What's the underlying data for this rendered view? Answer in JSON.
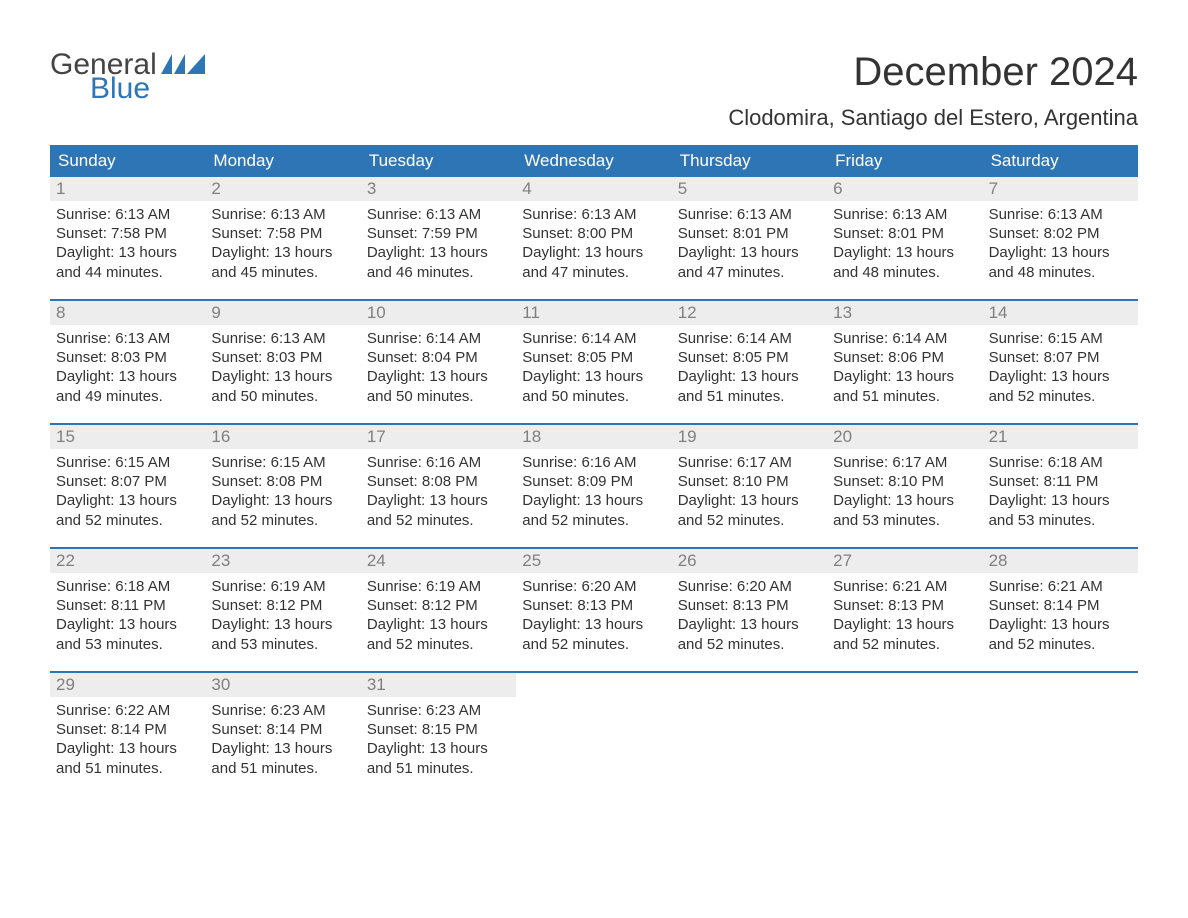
{
  "logo": {
    "line1": "General",
    "line2": "Blue",
    "color_general": "#444444",
    "color_blue": "#2e75b6"
  },
  "title": "December 2024",
  "location": "Clodomira, Santiago del Estero, Argentina",
  "header_bg": "#2e75b6",
  "header_text_color": "#ffffff",
  "daynum_bg": "#ededed",
  "daynum_color": "#808080",
  "body_text_color": "#333333",
  "week_border_color": "#2e75b6",
  "day_headers": [
    "Sunday",
    "Monday",
    "Tuesday",
    "Wednesday",
    "Thursday",
    "Friday",
    "Saturday"
  ],
  "weeks": [
    [
      {
        "n": "1",
        "sr": "Sunrise: 6:13 AM",
        "ss": "Sunset: 7:58 PM",
        "d1": "Daylight: 13 hours",
        "d2": "and 44 minutes."
      },
      {
        "n": "2",
        "sr": "Sunrise: 6:13 AM",
        "ss": "Sunset: 7:58 PM",
        "d1": "Daylight: 13 hours",
        "d2": "and 45 minutes."
      },
      {
        "n": "3",
        "sr": "Sunrise: 6:13 AM",
        "ss": "Sunset: 7:59 PM",
        "d1": "Daylight: 13 hours",
        "d2": "and 46 minutes."
      },
      {
        "n": "4",
        "sr": "Sunrise: 6:13 AM",
        "ss": "Sunset: 8:00 PM",
        "d1": "Daylight: 13 hours",
        "d2": "and 47 minutes."
      },
      {
        "n": "5",
        "sr": "Sunrise: 6:13 AM",
        "ss": "Sunset: 8:01 PM",
        "d1": "Daylight: 13 hours",
        "d2": "and 47 minutes."
      },
      {
        "n": "6",
        "sr": "Sunrise: 6:13 AM",
        "ss": "Sunset: 8:01 PM",
        "d1": "Daylight: 13 hours",
        "d2": "and 48 minutes."
      },
      {
        "n": "7",
        "sr": "Sunrise: 6:13 AM",
        "ss": "Sunset: 8:02 PM",
        "d1": "Daylight: 13 hours",
        "d2": "and 48 minutes."
      }
    ],
    [
      {
        "n": "8",
        "sr": "Sunrise: 6:13 AM",
        "ss": "Sunset: 8:03 PM",
        "d1": "Daylight: 13 hours",
        "d2": "and 49 minutes."
      },
      {
        "n": "9",
        "sr": "Sunrise: 6:13 AM",
        "ss": "Sunset: 8:03 PM",
        "d1": "Daylight: 13 hours",
        "d2": "and 50 minutes."
      },
      {
        "n": "10",
        "sr": "Sunrise: 6:14 AM",
        "ss": "Sunset: 8:04 PM",
        "d1": "Daylight: 13 hours",
        "d2": "and 50 minutes."
      },
      {
        "n": "11",
        "sr": "Sunrise: 6:14 AM",
        "ss": "Sunset: 8:05 PM",
        "d1": "Daylight: 13 hours",
        "d2": "and 50 minutes."
      },
      {
        "n": "12",
        "sr": "Sunrise: 6:14 AM",
        "ss": "Sunset: 8:05 PM",
        "d1": "Daylight: 13 hours",
        "d2": "and 51 minutes."
      },
      {
        "n": "13",
        "sr": "Sunrise: 6:14 AM",
        "ss": "Sunset: 8:06 PM",
        "d1": "Daylight: 13 hours",
        "d2": "and 51 minutes."
      },
      {
        "n": "14",
        "sr": "Sunrise: 6:15 AM",
        "ss": "Sunset: 8:07 PM",
        "d1": "Daylight: 13 hours",
        "d2": "and 52 minutes."
      }
    ],
    [
      {
        "n": "15",
        "sr": "Sunrise: 6:15 AM",
        "ss": "Sunset: 8:07 PM",
        "d1": "Daylight: 13 hours",
        "d2": "and 52 minutes."
      },
      {
        "n": "16",
        "sr": "Sunrise: 6:15 AM",
        "ss": "Sunset: 8:08 PM",
        "d1": "Daylight: 13 hours",
        "d2": "and 52 minutes."
      },
      {
        "n": "17",
        "sr": "Sunrise: 6:16 AM",
        "ss": "Sunset: 8:08 PM",
        "d1": "Daylight: 13 hours",
        "d2": "and 52 minutes."
      },
      {
        "n": "18",
        "sr": "Sunrise: 6:16 AM",
        "ss": "Sunset: 8:09 PM",
        "d1": "Daylight: 13 hours",
        "d2": "and 52 minutes."
      },
      {
        "n": "19",
        "sr": "Sunrise: 6:17 AM",
        "ss": "Sunset: 8:10 PM",
        "d1": "Daylight: 13 hours",
        "d2": "and 52 minutes."
      },
      {
        "n": "20",
        "sr": "Sunrise: 6:17 AM",
        "ss": "Sunset: 8:10 PM",
        "d1": "Daylight: 13 hours",
        "d2": "and 53 minutes."
      },
      {
        "n": "21",
        "sr": "Sunrise: 6:18 AM",
        "ss": "Sunset: 8:11 PM",
        "d1": "Daylight: 13 hours",
        "d2": "and 53 minutes."
      }
    ],
    [
      {
        "n": "22",
        "sr": "Sunrise: 6:18 AM",
        "ss": "Sunset: 8:11 PM",
        "d1": "Daylight: 13 hours",
        "d2": "and 53 minutes."
      },
      {
        "n": "23",
        "sr": "Sunrise: 6:19 AM",
        "ss": "Sunset: 8:12 PM",
        "d1": "Daylight: 13 hours",
        "d2": "and 53 minutes."
      },
      {
        "n": "24",
        "sr": "Sunrise: 6:19 AM",
        "ss": "Sunset: 8:12 PM",
        "d1": "Daylight: 13 hours",
        "d2": "and 52 minutes."
      },
      {
        "n": "25",
        "sr": "Sunrise: 6:20 AM",
        "ss": "Sunset: 8:13 PM",
        "d1": "Daylight: 13 hours",
        "d2": "and 52 minutes."
      },
      {
        "n": "26",
        "sr": "Sunrise: 6:20 AM",
        "ss": "Sunset: 8:13 PM",
        "d1": "Daylight: 13 hours",
        "d2": "and 52 minutes."
      },
      {
        "n": "27",
        "sr": "Sunrise: 6:21 AM",
        "ss": "Sunset: 8:13 PM",
        "d1": "Daylight: 13 hours",
        "d2": "and 52 minutes."
      },
      {
        "n": "28",
        "sr": "Sunrise: 6:21 AM",
        "ss": "Sunset: 8:14 PM",
        "d1": "Daylight: 13 hours",
        "d2": "and 52 minutes."
      }
    ],
    [
      {
        "n": "29",
        "sr": "Sunrise: 6:22 AM",
        "ss": "Sunset: 8:14 PM",
        "d1": "Daylight: 13 hours",
        "d2": "and 51 minutes."
      },
      {
        "n": "30",
        "sr": "Sunrise: 6:23 AM",
        "ss": "Sunset: 8:14 PM",
        "d1": "Daylight: 13 hours",
        "d2": "and 51 minutes."
      },
      {
        "n": "31",
        "sr": "Sunrise: 6:23 AM",
        "ss": "Sunset: 8:15 PM",
        "d1": "Daylight: 13 hours",
        "d2": "and 51 minutes."
      },
      {
        "blank": true
      },
      {
        "blank": true
      },
      {
        "blank": true
      },
      {
        "blank": true
      }
    ]
  ]
}
